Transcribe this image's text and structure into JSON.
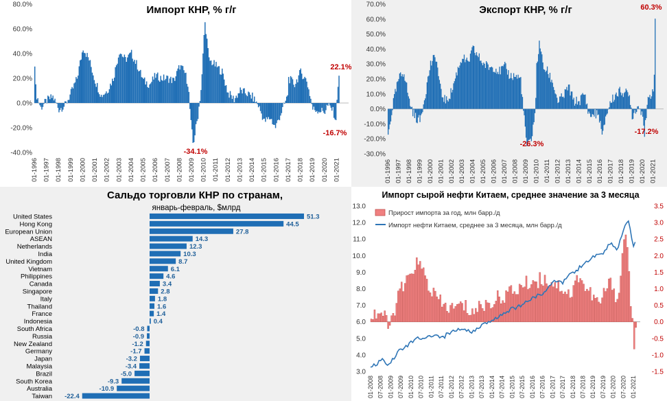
{
  "chart_data": [
    {
      "type": "bar",
      "title": "Импорт КНР, % г/г",
      "yticks": [
        "-40.0%",
        "-20.0%",
        "0.0%",
        "20.0%",
        "40.0%",
        "60.0%",
        "80.0%"
      ],
      "ylim": [
        -40,
        80
      ],
      "xticks": [
        "01-1996",
        "01-1997",
        "01-1998",
        "01-1999",
        "01-2000",
        "01-2001",
        "01-2002",
        "01-2003",
        "01-2004",
        "01-2005",
        "01-2006",
        "01-2007",
        "01-2008",
        "01-2009",
        "01-2010",
        "01-2011",
        "01-2012",
        "01-2013",
        "01-2014",
        "01-2015",
        "01-2016",
        "01-2017",
        "01-2018",
        "01-2019",
        "01-2020",
        "01-2021"
      ],
      "start": 1996.0,
      "step": 0.0833333,
      "anchors": [
        [
          1996.0,
          33
        ],
        [
          1996.1,
          8
        ],
        [
          1996.5,
          -4
        ],
        [
          1997.0,
          2
        ],
        [
          1997.5,
          5
        ],
        [
          1998.0,
          -5
        ],
        [
          1998.5,
          -2
        ],
        [
          1999.0,
          8
        ],
        [
          1999.5,
          20
        ],
        [
          2000.0,
          45
        ],
        [
          2000.5,
          35
        ],
        [
          2001.0,
          18
        ],
        [
          2001.5,
          6
        ],
        [
          2002.0,
          10
        ],
        [
          2002.5,
          20
        ],
        [
          2003.0,
          42
        ],
        [
          2003.5,
          35
        ],
        [
          2004.0,
          40
        ],
        [
          2004.5,
          30
        ],
        [
          2005.0,
          18
        ],
        [
          2005.5,
          15
        ],
        [
          2006.0,
          22
        ],
        [
          2006.5,
          20
        ],
        [
          2007.0,
          20
        ],
        [
          2007.5,
          18
        ],
        [
          2008.0,
          30
        ],
        [
          2008.4,
          25
        ],
        [
          2008.7,
          15
        ],
        [
          2008.9,
          -15
        ],
        [
          2009.1,
          -34
        ],
        [
          2009.5,
          -10
        ],
        [
          2009.8,
          15
        ],
        [
          2010.0,
          55
        ],
        [
          2010.1,
          66
        ],
        [
          2010.4,
          35
        ],
        [
          2011.0,
          30
        ],
        [
          2011.5,
          25
        ],
        [
          2012.0,
          8
        ],
        [
          2012.5,
          3
        ],
        [
          2013.0,
          10
        ],
        [
          2013.5,
          8
        ],
        [
          2014.0,
          5
        ],
        [
          2014.5,
          -2
        ],
        [
          2015.0,
          -15
        ],
        [
          2015.5,
          -12
        ],
        [
          2015.9,
          -20
        ],
        [
          2016.5,
          -5
        ],
        [
          2016.9,
          5
        ],
        [
          2017.0,
          20
        ],
        [
          2017.5,
          15
        ],
        [
          2018.0,
          25
        ],
        [
          2018.5,
          18
        ],
        [
          2018.8,
          5
        ],
        [
          2019.0,
          -5
        ],
        [
          2019.5,
          -6
        ],
        [
          2020.0,
          -7
        ],
        [
          2020.2,
          -2
        ],
        [
          2020.6,
          -5
        ],
        [
          2020.8,
          -10
        ],
        [
          2020.92,
          -16.7
        ],
        [
          2021.0,
          5
        ],
        [
          2021.15,
          22.1
        ]
      ],
      "annotations": [
        "-34.1%",
        "22.1%",
        "-16.7%"
      ]
    },
    {
      "type": "bar",
      "title": "Экспорт КНР, % г/г",
      "yticks": [
        "-30.0%",
        "-20.0%",
        "-10.0%",
        "0.0%",
        "10.0%",
        "20.0%",
        "30.0%",
        "40.0%",
        "50.0%",
        "60.0%",
        "70.0%"
      ],
      "ylim": [
        -30,
        70
      ],
      "xticks": [
        "01-1996",
        "01-1997",
        "01-1998",
        "01-1999",
        "01-2000",
        "01-2001",
        "01-2002",
        "01-2003",
        "01-2004",
        "01-2005",
        "01-2006",
        "01-2007",
        "01-2008",
        "01-2009",
        "01-2010",
        "01-2011",
        "01-2012",
        "01-2013",
        "01-2014",
        "01-2015",
        "01-2016",
        "01-2017",
        "01-2018",
        "01-2019",
        "01-2020",
        "01-2021"
      ],
      "start": 1996.0,
      "step": 0.0833333,
      "anchors": [
        [
          1996.0,
          -18
        ],
        [
          1996.5,
          5
        ],
        [
          1997.0,
          20
        ],
        [
          1997.5,
          25
        ],
        [
          1998.0,
          5
        ],
        [
          1998.5,
          -5
        ],
        [
          1999.0,
          -8
        ],
        [
          1999.5,
          10
        ],
        [
          2000.0,
          30
        ],
        [
          2000.5,
          35
        ],
        [
          2001.0,
          10
        ],
        [
          2001.5,
          5
        ],
        [
          2002.0,
          12
        ],
        [
          2002.5,
          25
        ],
        [
          2003.0,
          35
        ],
        [
          2003.5,
          30
        ],
        [
          2004.0,
          40
        ],
        [
          2004.5,
          35
        ],
        [
          2005.0,
          30
        ],
        [
          2005.5,
          28
        ],
        [
          2006.0,
          28
        ],
        [
          2006.5,
          25
        ],
        [
          2007.0,
          28
        ],
        [
          2007.5,
          22
        ],
        [
          2008.0,
          22
        ],
        [
          2008.5,
          20
        ],
        [
          2008.8,
          -5
        ],
        [
          2009.1,
          -26
        ],
        [
          2009.5,
          -20
        ],
        [
          2009.9,
          0
        ],
        [
          2010.0,
          30
        ],
        [
          2010.3,
          45
        ],
        [
          2010.6,
          28
        ],
        [
          2011.0,
          25
        ],
        [
          2011.5,
          18
        ],
        [
          2012.0,
          5
        ],
        [
          2012.5,
          8
        ],
        [
          2013.0,
          15
        ],
        [
          2013.5,
          5
        ],
        [
          2014.0,
          5
        ],
        [
          2014.5,
          10
        ],
        [
          2015.0,
          -5
        ],
        [
          2015.5,
          -3
        ],
        [
          2015.9,
          -5
        ],
        [
          2016.2,
          -20
        ],
        [
          2016.5,
          -5
        ],
        [
          2017.0,
          5
        ],
        [
          2017.5,
          10
        ],
        [
          2018.0,
          12
        ],
        [
          2018.5,
          10
        ],
        [
          2018.8,
          8
        ],
        [
          2019.0,
          -5
        ],
        [
          2019.5,
          2
        ],
        [
          2020.0,
          -2
        ],
        [
          2020.15,
          -17.2
        ],
        [
          2020.5,
          5
        ],
        [
          2020.9,
          12
        ],
        [
          2021.0,
          15
        ],
        [
          2021.1,
          25
        ],
        [
          2021.15,
          60.3
        ]
      ],
      "annotations": [
        "-26.3%",
        "60.3%",
        "-17.2%"
      ]
    },
    {
      "type": "bar",
      "title": "Сальдо торговли КНР по странам,",
      "subtitle": "январь-февраль, $млрд",
      "categories": [
        "United States",
        "Hong Kong",
        "European Union",
        "ASEAN",
        "Netherlands",
        "India",
        "United Kingdom",
        "Vietnam",
        "Philippines",
        "Canada",
        "Singapore",
        "Italy",
        "Thailand",
        "France",
        "Indonesia",
        "South Africa",
        "Russia",
        "New Zealand",
        "Germany",
        "Japan",
        "Malaysia",
        "Brazil",
        "South Korea",
        "Australia",
        "Taiwan"
      ],
      "values": [
        51.3,
        44.5,
        27.8,
        14.3,
        12.3,
        10.3,
        8.7,
        6.1,
        4.6,
        3.4,
        2.8,
        1.8,
        1.6,
        1.4,
        0.4,
        -0.8,
        -0.9,
        -1.2,
        -1.7,
        -3.2,
        -3.4,
        -5.0,
        -9.3,
        -10.9,
        -22.4
      ],
      "labels": [
        "51.3",
        "44.5",
        "27.8",
        "14.3",
        "12.3",
        "10.3",
        "8.7",
        "6.1",
        "4.6",
        "3.4",
        "2.8",
        "1.8",
        "1.6",
        "1.4",
        "0.4",
        "-0.8",
        "-0.9",
        "-1.2",
        "-1.7",
        "-3.2",
        "-3.4",
        "-5.0",
        "-9.3",
        "-10.9",
        "-22.4"
      ]
    },
    {
      "type": "bar",
      "title": "Импорт сырой нефти Китаем, среднее значение за 3 месяца",
      "series": [
        {
          "name": "Прирост импорта за год, млн барр./д",
          "anchors": [
            [
              2008.0,
              0.2
            ],
            [
              2008.5,
              0.3
            ],
            [
              2008.9,
              -0.2
            ],
            [
              2009.2,
              0.5
            ],
            [
              2009.5,
              1.0
            ],
            [
              2009.8,
              1.2
            ],
            [
              2010.2,
              1.8
            ],
            [
              2010.5,
              1.6
            ],
            [
              2010.9,
              1.0
            ],
            [
              2011.5,
              0.5
            ],
            [
              2012.0,
              0.4
            ],
            [
              2012.5,
              0.5
            ],
            [
              2013.0,
              0.3
            ],
            [
              2013.5,
              0.5
            ],
            [
              2014.0,
              0.6
            ],
            [
              2014.5,
              0.8
            ],
            [
              2015.0,
              0.9
            ],
            [
              2015.5,
              1.1
            ],
            [
              2015.9,
              1.2
            ],
            [
              2016.5,
              1.3
            ],
            [
              2017.0,
              1.2
            ],
            [
              2017.5,
              1.0
            ],
            [
              2017.9,
              0.8
            ],
            [
              2018.3,
              1.5
            ],
            [
              2018.5,
              1.1
            ],
            [
              2018.9,
              0.8
            ],
            [
              2019.3,
              0.5
            ],
            [
              2019.6,
              1.0
            ],
            [
              2019.9,
              1.2
            ],
            [
              2020.2,
              0.6
            ],
            [
              2020.4,
              1.8
            ],
            [
              2020.55,
              3.0
            ],
            [
              2020.75,
              1.5
            ],
            [
              2020.9,
              0.0
            ],
            [
              2021.0,
              -0.8
            ],
            [
              2021.1,
              -0.3
            ]
          ]
        },
        {
          "name": "Импорт нефти Китаем, среднее за 3 месяца, млн барр./д",
          "anchors": [
            [
              2008.0,
              3.2
            ],
            [
              2008.6,
              3.7
            ],
            [
              2008.9,
              3.3
            ],
            [
              2009.4,
              4.3
            ],
            [
              2009.8,
              4.5
            ],
            [
              2010.2,
              5.0
            ],
            [
              2010.6,
              4.9
            ],
            [
              2011.0,
              5.2
            ],
            [
              2011.5,
              5.0
            ],
            [
              2012.0,
              5.4
            ],
            [
              2012.5,
              5.6
            ],
            [
              2013.0,
              5.4
            ],
            [
              2013.5,
              5.8
            ],
            [
              2014.0,
              6.0
            ],
            [
              2014.5,
              6.5
            ],
            [
              2015.0,
              6.8
            ],
            [
              2015.5,
              7.0
            ],
            [
              2016.0,
              7.5
            ],
            [
              2016.5,
              7.6
            ],
            [
              2017.0,
              8.5
            ],
            [
              2017.5,
              8.4
            ],
            [
              2018.0,
              9.0
            ],
            [
              2018.5,
              9.4
            ],
            [
              2019.0,
              9.9
            ],
            [
              2019.5,
              10.2
            ],
            [
              2019.9,
              10.8
            ],
            [
              2020.2,
              10.3
            ],
            [
              2020.6,
              12.0
            ],
            [
              2020.75,
              12.1
            ],
            [
              2021.0,
              10.6
            ],
            [
              2021.1,
              11.0
            ]
          ]
        }
      ],
      "y1ticks": [
        "3.0",
        "4.0",
        "5.0",
        "6.0",
        "7.0",
        "8.0",
        "9.0",
        "10.0",
        "11.0",
        "12.0",
        "13.0"
      ],
      "y1lim": [
        3,
        13
      ],
      "y2ticks": [
        "-1.5",
        "-1.0",
        "-0.5",
        "0.0",
        "0.5",
        "1.0",
        "1.5",
        "2.0",
        "2.5",
        "3.0",
        "3.5"
      ],
      "y2lim": [
        -1.5,
        3.5
      ],
      "xticks": [
        "01-2008",
        "07-2008",
        "01-2009",
        "07-2009",
        "01-2010",
        "07-2010",
        "01-2011",
        "07-2011",
        "01-2012",
        "07-2012",
        "01-2013",
        "07-2013",
        "01-2014",
        "07-2014",
        "01-2015",
        "07-2015",
        "01-2016",
        "07-2016",
        "01-2017",
        "07-2017",
        "01-2018",
        "07-2018",
        "01-2019",
        "07-2019",
        "01-2020",
        "07-2020",
        "01-2021"
      ],
      "start": 2008.0,
      "step": 0.0833333
    }
  ],
  "colors": {
    "bar": "#1f6eb5",
    "accent": "#c00000",
    "oil_bar": "#f08080",
    "oil_bar_edge": "#c0504d",
    "oil_line": "#2e75b6"
  }
}
